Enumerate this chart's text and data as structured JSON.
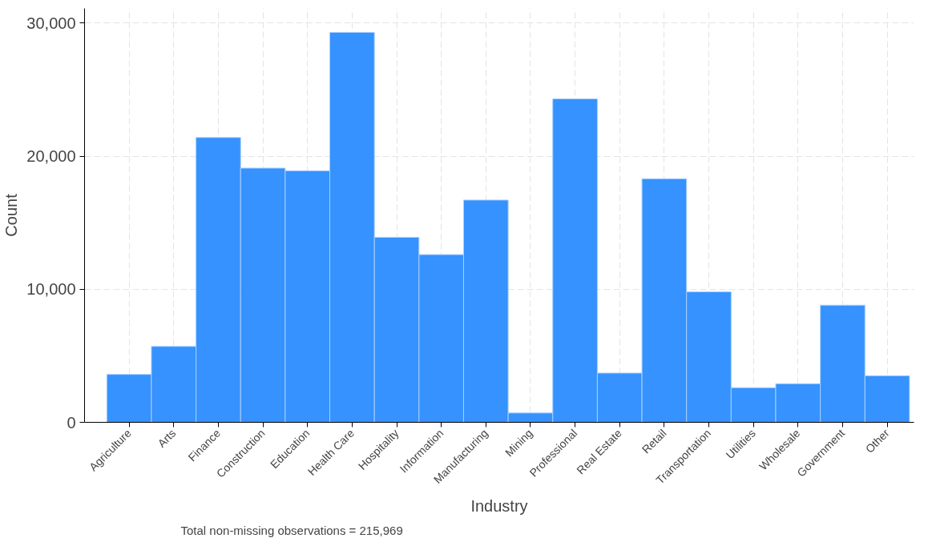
{
  "chart_data": {
    "type": "bar",
    "xlabel": "Industry",
    "ylabel": "Count",
    "categories": [
      "Agriculture",
      "Arts",
      "Finance",
      "Construction",
      "Education",
      "Health Care",
      "Hospitality",
      "Information",
      "Manufacturing",
      "Mining",
      "Professional",
      "Real Estate",
      "Retail",
      "Transportation",
      "Utilities",
      "Wholesale",
      "Government",
      "Other"
    ],
    "values": [
      3600,
      5700,
      21400,
      19100,
      18900,
      29300,
      13900,
      12600,
      16700,
      700,
      24300,
      3700,
      18300,
      9800,
      2600,
      2900,
      8800,
      3500
    ],
    "color": "#3592fe",
    "ylim": [
      0,
      31100
    ],
    "yticks": [
      0,
      {
        "value": 10000,
        "label": "10,000"
      },
      {
        "value": 20000,
        "label": "20,000"
      },
      {
        "value": 30000,
        "label": "30,000"
      }
    ],
    "grid": true,
    "annotations": [
      "Total non-missing observations =     215,969"
    ]
  }
}
